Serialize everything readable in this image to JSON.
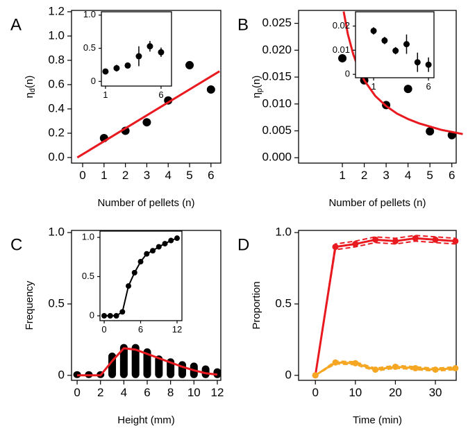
{
  "chart_data": [
    {
      "type": "scatter",
      "panel": "A",
      "xlabel": "Number of pellets (n)",
      "ylabel": {
        "symbol": "η",
        "sub": "d",
        "arg": "(n)"
      },
      "xlim": [
        -0.52,
        6.46
      ],
      "ylim": [
        -0.046,
        1.211
      ],
      "xticks": [
        0,
        1,
        2,
        3,
        4,
        5,
        6
      ],
      "yticks": [
        {
          "value": 0,
          "label": "0.0"
        },
        0.2,
        0.4,
        0.6,
        0.8,
        {
          "value": 1,
          "label": "1.0"
        },
        1.2
      ],
      "series": [
        {
          "type": "scatter",
          "color": "#000000",
          "x": [
            1,
            2,
            3,
            4,
            5,
            6
          ],
          "values": [
            0.16,
            0.22,
            0.29,
            0.47,
            0.76,
            0.56
          ]
        },
        {
          "type": "line",
          "color": "#e8191f",
          "x": [
            -0.25,
            6.4
          ],
          "values": [
            0.0,
            0.71
          ]
        }
      ]
    },
    {
      "type": "scatter",
      "xlim": [
        0.63,
        6.94
      ],
      "ylim": [
        -0.07,
        1.05
      ],
      "xticks": [
        1,
        6
      ],
      "yticks": [
        0,
        0.5,
        {
          "value": 1,
          "label": "1.0"
        }
      ],
      "series": [
        {
          "type": "scatter",
          "color": "#000000",
          "x": [
            1,
            2,
            3,
            4,
            5,
            6
          ],
          "values": [
            0.15,
            0.2,
            0.24,
            0.38,
            0.53,
            0.44
          ],
          "errors": [
            0.02,
            0.05,
            0.03,
            0.15,
            0.08,
            0.07
          ]
        }
      ]
    },
    {
      "type": "scatter",
      "panel": "B",
      "xlabel": "Number of pellets (n)",
      "ylabel": {
        "symbol": "η",
        "sub": "p",
        "arg": "(n)"
      },
      "xlim": [
        -1,
        6.2
      ],
      "ylim": [
        -0.001,
        0.0274
      ],
      "xticks": [
        1,
        2,
        3,
        4,
        5,
        6
      ],
      "yticks": [
        {
          "value": 0,
          "label": "0.000"
        },
        {
          "value": 0.005,
          "label": "0.005"
        },
        {
          "value": 0.01,
          "label": "0.010"
        },
        {
          "value": 0.015,
          "label": "0.015"
        },
        {
          "value": 0.02,
          "label": "0.020"
        },
        {
          "value": 0.025,
          "label": "0.025"
        }
      ],
      "series": [
        {
          "type": "scatter",
          "color": "#000000",
          "x": [
            1,
            2,
            3,
            4,
            5,
            6
          ],
          "values": [
            0.0185,
            0.0144,
            0.0098,
            0.0128,
            0.0049,
            0.0042
          ]
        },
        {
          "type": "line",
          "color": "#e8191f",
          "x": [
            1.06,
            1.25,
            1.5,
            1.75,
            2,
            2.5,
            3,
            3.5,
            4,
            4.5,
            5,
            5.5,
            6,
            6.5
          ],
          "values": [
            0.0272,
            0.023,
            0.0192,
            0.0165,
            0.0144,
            0.0115,
            0.0096,
            0.0082,
            0.0072,
            0.0064,
            0.0058,
            0.0052,
            0.0048,
            0.0044
          ]
        }
      ]
    },
    {
      "type": "scatter",
      "xlim": [
        -0.65,
        6.5
      ],
      "ylim": [
        -0.0014,
        0.0259
      ],
      "xticks": [
        1,
        6
      ],
      "yticks": [
        0,
        0.01,
        0.02
      ],
      "series": [
        {
          "type": "scatter",
          "color": "#000000",
          "x": [
            1,
            2,
            3,
            4,
            5,
            6
          ],
          "values": [
            0.018,
            0.014,
            0.0098,
            0.0125,
            0.005,
            0.004
          ],
          "errors": [
            0.0015,
            0.0015,
            0.0015,
            0.004,
            0.004,
            0.003
          ]
        }
      ]
    },
    {
      "type": "bar",
      "panel": "C",
      "xlabel": "Height (mm)",
      "ylabel": "Frequency",
      "xlim": [
        -0.48,
        12.3
      ],
      "ylim": [
        -0.035,
        1.015
      ],
      "xticks": [
        0,
        2,
        4,
        6,
        8,
        10,
        12
      ],
      "yticks": [
        0,
        0.5,
        {
          "value": 1,
          "label": "1.0"
        }
      ],
      "series": [
        {
          "type": "bar",
          "color": "#000000",
          "x": [
            0,
            1,
            2,
            3,
            4,
            5,
            6,
            7,
            8,
            9,
            10,
            11,
            12
          ],
          "values": [
            0.01,
            0.01,
            0.01,
            0.14,
            0.2,
            0.2,
            0.17,
            0.12,
            0.1,
            0.08,
            0.07,
            0.05,
            0.03
          ]
        },
        {
          "type": "line",
          "color": "#e8191f",
          "x": [
            0,
            2,
            3,
            4,
            5,
            6,
            7,
            8,
            9,
            10,
            11,
            12
          ],
          "values": [
            0,
            0,
            0.1,
            0.19,
            0.18,
            0.15,
            0.12,
            0.09,
            0.06,
            0.035,
            0.015,
            0.005
          ]
        }
      ]
    },
    {
      "type": "line",
      "xlim": [
        -0.69,
        12.8
      ],
      "ylim": [
        -0.062,
        1.08
      ],
      "xticks": [
        0,
        6,
        12
      ],
      "yticks": [
        0,
        0.5,
        {
          "value": 1,
          "label": "1.0"
        }
      ],
      "series": [
        {
          "type": "line",
          "color": "#000000",
          "markers": true,
          "x": [
            0,
            1,
            2,
            3,
            4,
            5,
            6,
            7,
            8,
            9,
            10,
            11,
            12
          ],
          "values": [
            0,
            0,
            0,
            0.05,
            0.38,
            0.55,
            0.69,
            0.79,
            0.83,
            0.88,
            0.92,
            0.96,
            0.99
          ]
        }
      ]
    },
    {
      "type": "line",
      "panel": "D",
      "xlabel": "Time (min)",
      "ylabel": "Proportion",
      "xlim": [
        -4.2,
        35.2
      ],
      "ylim": [
        -0.035,
        1.015
      ],
      "xticks": [
        0,
        10,
        20,
        30
      ],
      "yticks": [
        0,
        0.5,
        {
          "value": 1,
          "label": "1.0"
        }
      ],
      "series": [
        {
          "type": "line",
          "color": "#e8191f",
          "markers": true,
          "x": [
            0,
            5,
            10,
            15,
            20,
            25,
            30,
            35
          ],
          "values": [
            0,
            0.9,
            0.92,
            0.95,
            0.94,
            0.96,
            0.95,
            0.94
          ],
          "errors": [
            0,
            0.02,
            0.02,
            0.02,
            0.02,
            0.02,
            0.02,
            0.02
          ]
        },
        {
          "type": "line",
          "color": "#f5a623",
          "markers": true,
          "x": [
            0,
            5,
            10,
            15,
            20,
            25,
            30,
            35
          ],
          "values": [
            0,
            0.09,
            0.085,
            0.04,
            0.06,
            0.05,
            0.04,
            0.05
          ],
          "errors": [
            0,
            0.01,
            0.01,
            0.01,
            0.01,
            0.01,
            0.01,
            0.01
          ]
        }
      ]
    }
  ]
}
